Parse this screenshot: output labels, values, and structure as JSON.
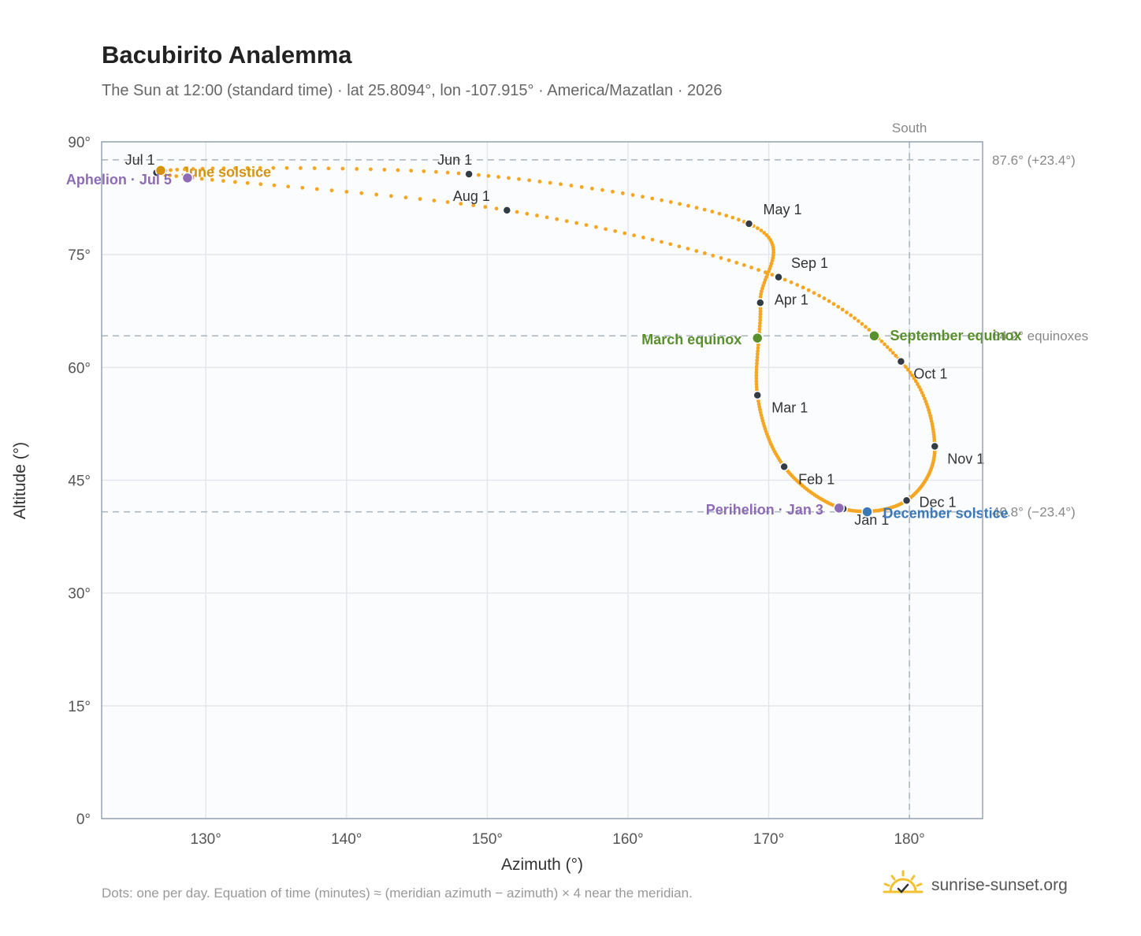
{
  "header": {
    "title": "Bacubirito Analemma",
    "subtitle": "The Sun at 12:00 (standard time) · lat 25.8094°, lon -107.915° · America/Mazatlan · 2026"
  },
  "footnote": "Dots: one per day. Equation of time (minutes) ≈ (meridian azimuth − azimuth) × 4 near the meridian.",
  "brand": {
    "name": "sunrise-sunset.org",
    "icon": "sun-logo-icon"
  },
  "colors": {
    "path": "#F5A623",
    "month": "#333B45",
    "solstice_june": "#D4930F",
    "equinox": "#5A8F2E",
    "solstice_dec": "#3B78B8",
    "apsis": "#8E6BB5",
    "grid": "#E3E7EB",
    "ref": "#AAB4BE",
    "plot_bg": "#FBFCFE"
  },
  "chart_data": {
    "type": "scatter",
    "title": "Bacubirito Analemma",
    "xlabel": "Azimuth (°)",
    "ylabel": "Altitude (°)",
    "xlim": [
      122.6,
      185.2
    ],
    "ylim": [
      0,
      90
    ],
    "xticks": [
      130,
      140,
      150,
      160,
      170,
      180
    ],
    "xtick_labels": [
      "130°",
      "140°",
      "150°",
      "160°",
      "170°",
      "180°"
    ],
    "yticks": [
      0,
      15,
      30,
      45,
      60,
      75,
      90
    ],
    "ytick_labels": [
      "0°",
      "15°",
      "30°",
      "45°",
      "60°",
      "75°",
      "90°"
    ],
    "grid": true,
    "south_line": {
      "x": 180,
      "label": "South"
    },
    "ref_lines": [
      {
        "y": 87.6,
        "label": "87.6° (+23.4°)"
      },
      {
        "y": 64.2,
        "label": "64.2° equinoxes"
      },
      {
        "y": 40.8,
        "label": "40.8° (−23.4°)"
      }
    ],
    "months": [
      {
        "label": "Jan 1",
        "az": 175.3,
        "alt": 41.2
      },
      {
        "label": "Feb 1",
        "az": 171.1,
        "alt": 46.8
      },
      {
        "label": "Mar 1",
        "az": 169.2,
        "alt": 56.3
      },
      {
        "label": "Apr 1",
        "az": 169.4,
        "alt": 68.6
      },
      {
        "label": "May 1",
        "az": 168.6,
        "alt": 79.1
      },
      {
        "label": "Jun 1",
        "az": 148.7,
        "alt": 85.7
      },
      {
        "label": "Jul 1",
        "az": 126.5,
        "alt": 85.9
      },
      {
        "label": "Aug 1",
        "az": 151.4,
        "alt": 80.9
      },
      {
        "label": "Sep 1",
        "az": 170.7,
        "alt": 72.0
      },
      {
        "label": "Oct 1",
        "az": 179.4,
        "alt": 60.8
      },
      {
        "label": "Nov 1",
        "az": 181.8,
        "alt": 49.5
      },
      {
        "label": "Dec 1",
        "az": 179.8,
        "alt": 42.3
      }
    ],
    "events": [
      {
        "label": "June solstice",
        "az": 126.8,
        "alt": 86.2,
        "kind": "solstice_june"
      },
      {
        "label": "Aphelion · Jul 5",
        "az": 128.7,
        "alt": 85.2,
        "kind": "apsis"
      },
      {
        "label": "March equinox",
        "az": 169.2,
        "alt": 63.9,
        "kind": "equinox"
      },
      {
        "label": "September equinox",
        "az": 177.5,
        "alt": 64.2,
        "kind": "equinox"
      },
      {
        "label": "Perihelion · Jan 3",
        "az": 175.0,
        "alt": 41.3,
        "kind": "apsis"
      },
      {
        "label": "December solstice",
        "az": 177.0,
        "alt": 40.8,
        "kind": "solstice_dec"
      }
    ]
  }
}
